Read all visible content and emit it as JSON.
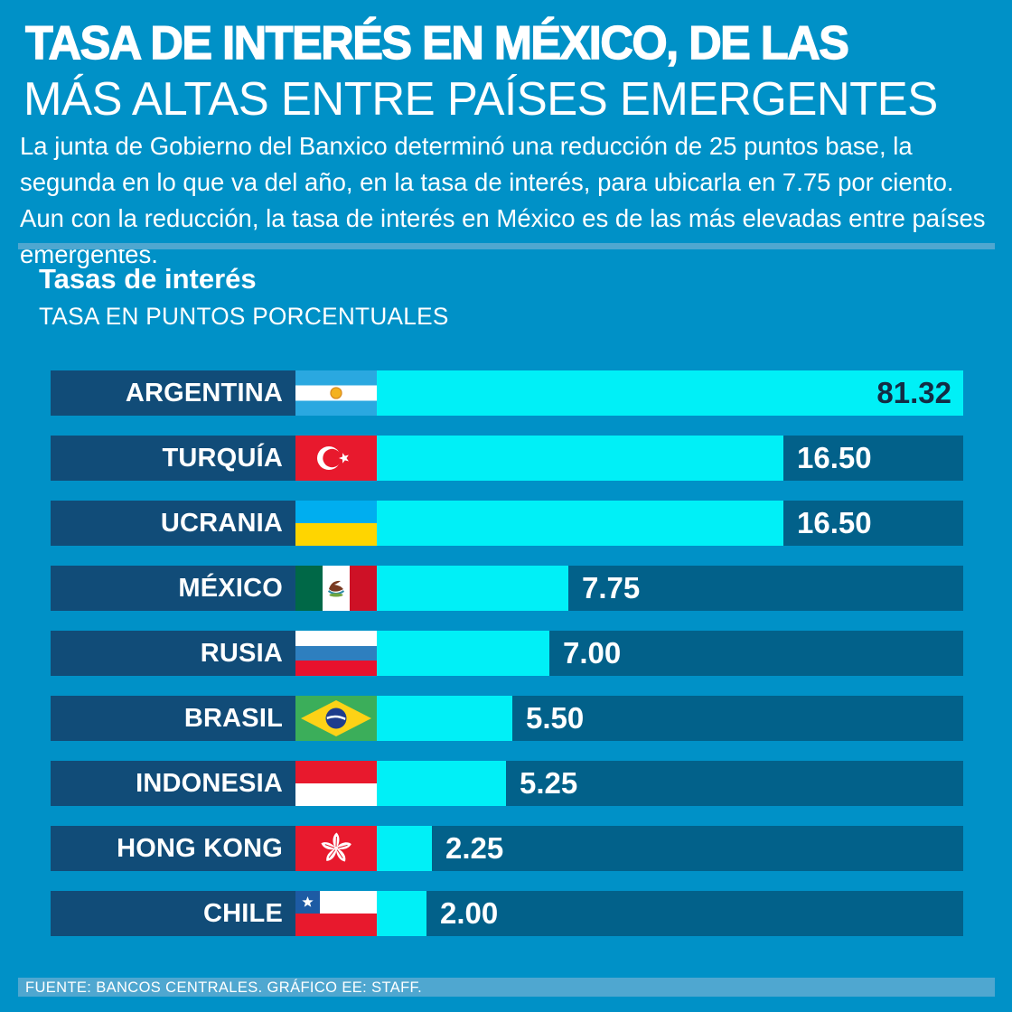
{
  "colors": {
    "background": "#0091C7",
    "bar": "#00F0F7",
    "bar_track": "#02618A",
    "label_box": "#114C78",
    "accent_strip": "#4FA7D0",
    "value_dark": "#132C44",
    "text": "#FFFFFF"
  },
  "header": {
    "title_line1": "TASA DE INTERÉS EN MÉXICO, DE LAS",
    "title_line2": "MÁS ALTAS ENTRE PAÍSES EMERGENTES",
    "intro": "La junta de Gobierno del Banxico determinó una reducción de 25 puntos base, la segunda en lo que va del año, en la tasa de interés, para ubicarla en 7.75 por ciento. Aun con la reducción, la tasa de interés en México es de las más elevadas entre países emergentes."
  },
  "chart": {
    "title": "Tasas de interés",
    "subtitle": "TASA EN PUNTOS PORCENTUALES"
  },
  "chart_data": {
    "type": "bar",
    "orientation": "horizontal",
    "title": "Tasas de interés",
    "unit_label": "TASA EN PUNTOS PORCENTUALES",
    "legend": "none",
    "grid": false,
    "categories": [
      "ARGENTINA",
      "TURQUÍA",
      "UCRANIA",
      "MÉXICO",
      "RUSIA",
      "BRASIL",
      "INDONESIA",
      "HONG KONG",
      "CHILE"
    ],
    "values": [
      81.32,
      16.5,
      16.5,
      7.75,
      7.0,
      5.5,
      5.25,
      2.25,
      2.0
    ],
    "value_labels": [
      "81.32",
      "16.50",
      "16.50",
      "7.75",
      "7.00",
      "5.50",
      "5.25",
      "2.25",
      "2.00"
    ],
    "flags": [
      "argentina",
      "turquia",
      "ucrania",
      "mexico",
      "rusia",
      "brasil",
      "indonesia",
      "hongkong",
      "chile"
    ],
    "clipped_bars": [
      "ARGENTINA"
    ],
    "bar_color": "#00F0F7"
  },
  "footer": {
    "source": "FUENTE: BANCOS CENTRALES. GRÁFICO EE: STAFF."
  }
}
